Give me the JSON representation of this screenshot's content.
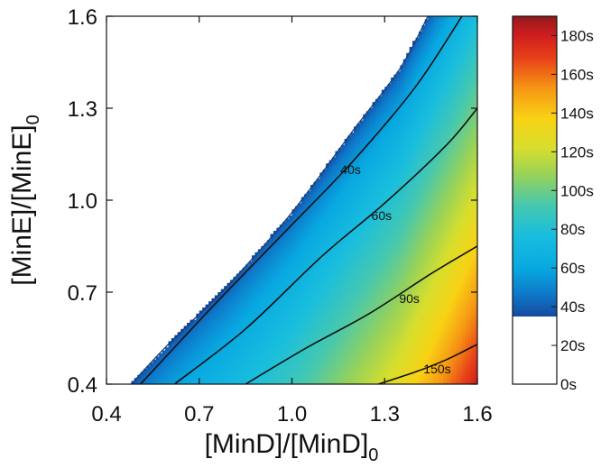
{
  "chart_data": {
    "type": "heatmap",
    "title": "",
    "xlabel": "[MinD]/[MinD]",
    "xlabel_sub": "0",
    "ylabel": "[MinE]/[MinE]",
    "ylabel_sub": "0",
    "xlim": [
      0.4,
      1.6
    ],
    "ylim": [
      0.4,
      1.6
    ],
    "x_ticks": [
      "0.4",
      "0.7",
      "1.0",
      "1.3",
      "1.6"
    ],
    "y_ticks": [
      "0.4",
      "0.7",
      "1.0",
      "1.3",
      "1.6"
    ],
    "colorbar": {
      "range": [
        0,
        190
      ],
      "ticks": [
        "0s",
        "20s",
        "40s",
        "60s",
        "80s",
        "100s",
        "120s",
        "140s",
        "160s",
        "180s"
      ],
      "tick_values": [
        0,
        20,
        40,
        60,
        80,
        100,
        120,
        140,
        160,
        180
      ],
      "min_colored_value": 35
    },
    "boundary": [
      {
        "x": 0.48,
        "y": 0.4
      },
      {
        "x": 0.6,
        "y": 0.53
      },
      {
        "x": 0.8,
        "y": 0.73
      },
      {
        "x": 1.0,
        "y": 0.96
      },
      {
        "x": 1.2,
        "y": 1.23
      },
      {
        "x": 1.35,
        "y": 1.43
      },
      {
        "x": 1.44,
        "y": 1.6
      }
    ],
    "contours": [
      {
        "label": "40s",
        "value": 40,
        "label_at": {
          "x": 1.19,
          "y": 1.1
        },
        "points": [
          {
            "x": 0.51,
            "y": 0.4
          },
          {
            "x": 0.75,
            "y": 0.66
          },
          {
            "x": 1.0,
            "y": 0.92
          },
          {
            "x": 1.2,
            "y": 1.13
          },
          {
            "x": 1.4,
            "y": 1.37
          },
          {
            "x": 1.55,
            "y": 1.6
          }
        ]
      },
      {
        "label": "60s",
        "value": 60,
        "label_at": {
          "x": 1.29,
          "y": 0.95
        },
        "points": [
          {
            "x": 0.62,
            "y": 0.4
          },
          {
            "x": 0.85,
            "y": 0.58
          },
          {
            "x": 1.1,
            "y": 0.82
          },
          {
            "x": 1.3,
            "y": 0.99
          },
          {
            "x": 1.5,
            "y": 1.18
          },
          {
            "x": 1.6,
            "y": 1.3
          }
        ]
      },
      {
        "label": "90s",
        "value": 90,
        "label_at": {
          "x": 1.38,
          "y": 0.68
        },
        "points": [
          {
            "x": 0.85,
            "y": 0.4
          },
          {
            "x": 1.05,
            "y": 0.52
          },
          {
            "x": 1.25,
            "y": 0.63
          },
          {
            "x": 1.45,
            "y": 0.76
          },
          {
            "x": 1.6,
            "y": 0.85
          }
        ]
      },
      {
        "label": "150s",
        "value": 150,
        "label_at": {
          "x": 1.47,
          "y": 0.45
        },
        "points": [
          {
            "x": 1.28,
            "y": 0.4
          },
          {
            "x": 1.4,
            "y": 0.44
          },
          {
            "x": 1.5,
            "y": 0.48
          },
          {
            "x": 1.6,
            "y": 0.53
          }
        ]
      }
    ],
    "grid": false,
    "legend": "colorbar-right"
  }
}
